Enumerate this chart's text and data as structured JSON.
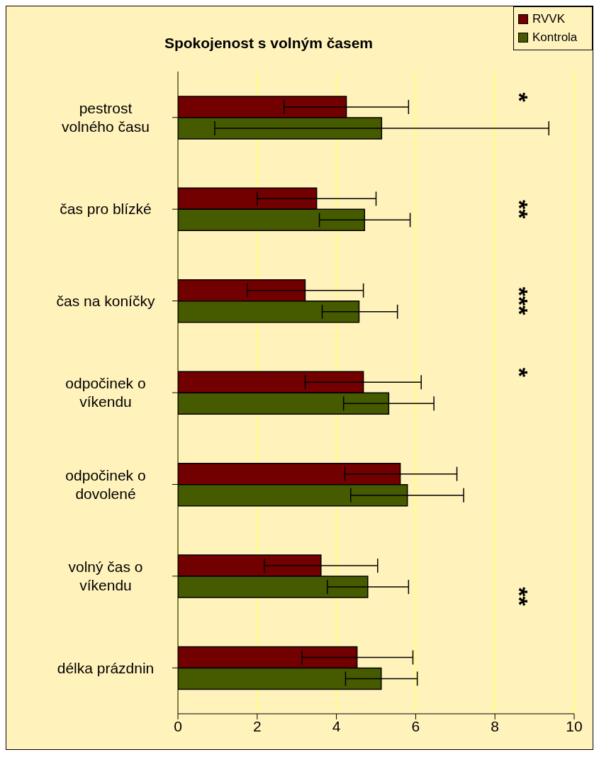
{
  "chart_data": {
    "type": "bar",
    "orientation": "horizontal",
    "title": "Spokojenost s volným časem",
    "categories": [
      "pestrost volného času",
      "čas pro blízké",
      "čas na koníčky",
      "odpočinek o víkendu",
      "odpočinek o dovolené",
      "volný čas o víkendu",
      "délka prázdnin"
    ],
    "series": [
      {
        "name": "RVVK",
        "color": "#720000",
        "values": [
          4.25,
          3.5,
          3.21,
          4.68,
          5.61,
          3.61,
          4.52
        ],
        "errors": [
          [
            2.68,
            5.82
          ],
          [
            2.0,
            5.0
          ],
          [
            1.75,
            4.68
          ],
          [
            3.21,
            6.14
          ],
          [
            4.21,
            7.04
          ],
          [
            2.18,
            5.04
          ],
          [
            3.13,
            5.93
          ]
        ]
      },
      {
        "name": "Kontrola",
        "color": "#465a00",
        "values": [
          5.14,
          4.71,
          4.57,
          5.32,
          5.79,
          4.79,
          5.13
        ],
        "errors": [
          [
            0.93,
            9.36
          ],
          [
            3.57,
            5.86
          ],
          [
            3.64,
            5.54
          ],
          [
            4.18,
            6.46
          ],
          [
            4.36,
            7.21
          ],
          [
            3.77,
            5.82
          ],
          [
            4.23,
            6.04
          ]
        ]
      }
    ],
    "xlim": [
      0,
      10
    ],
    "xticks": [
      0,
      2,
      4,
      6,
      8,
      10
    ],
    "grid": "x",
    "legend": "top right",
    "annotations": [
      "*",
      "**",
      "***",
      "*",
      "**"
    ]
  }
}
